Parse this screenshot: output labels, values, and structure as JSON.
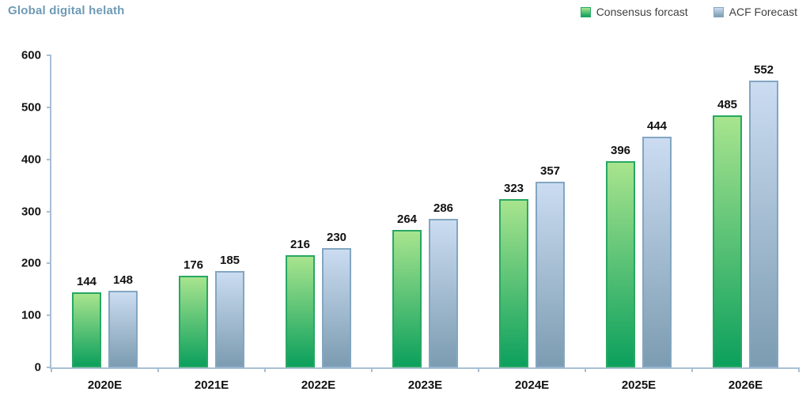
{
  "header": {
    "title": "Global digital helath",
    "title_color": "#6e9ab5"
  },
  "legend": {
    "0": {
      "label": "Consensus forcast"
    },
    "1": {
      "label": "ACF Forecast"
    }
  },
  "chart_data": {
    "type": "bar",
    "title": "Global digital helath",
    "categories": [
      "2020E",
      "2021E",
      "2022E",
      "2023E",
      "2024E",
      "2025E",
      "2026E"
    ],
    "series": [
      {
        "name": "Consensus forcast",
        "values": [
          144,
          176,
          216,
          264,
          323,
          396,
          485
        ],
        "fill_top": "#a8e48e",
        "fill_bottom": "#0ca05d",
        "border": "#27a863"
      },
      {
        "name": "ACF Forecast",
        "values": [
          148,
          185,
          230,
          286,
          357,
          444,
          552
        ],
        "fill_top": "#cbdcf1",
        "fill_bottom": "#7c9cb1",
        "border": "#83a6c1"
      }
    ],
    "xlabel": "",
    "ylabel": "",
    "ylim": [
      0,
      600
    ],
    "yticks": [
      0,
      100,
      200,
      300,
      400,
      500,
      600
    ],
    "grid": false,
    "legend_position": "top-right",
    "axis_color": "#a9bfd4",
    "data_labels": true
  }
}
